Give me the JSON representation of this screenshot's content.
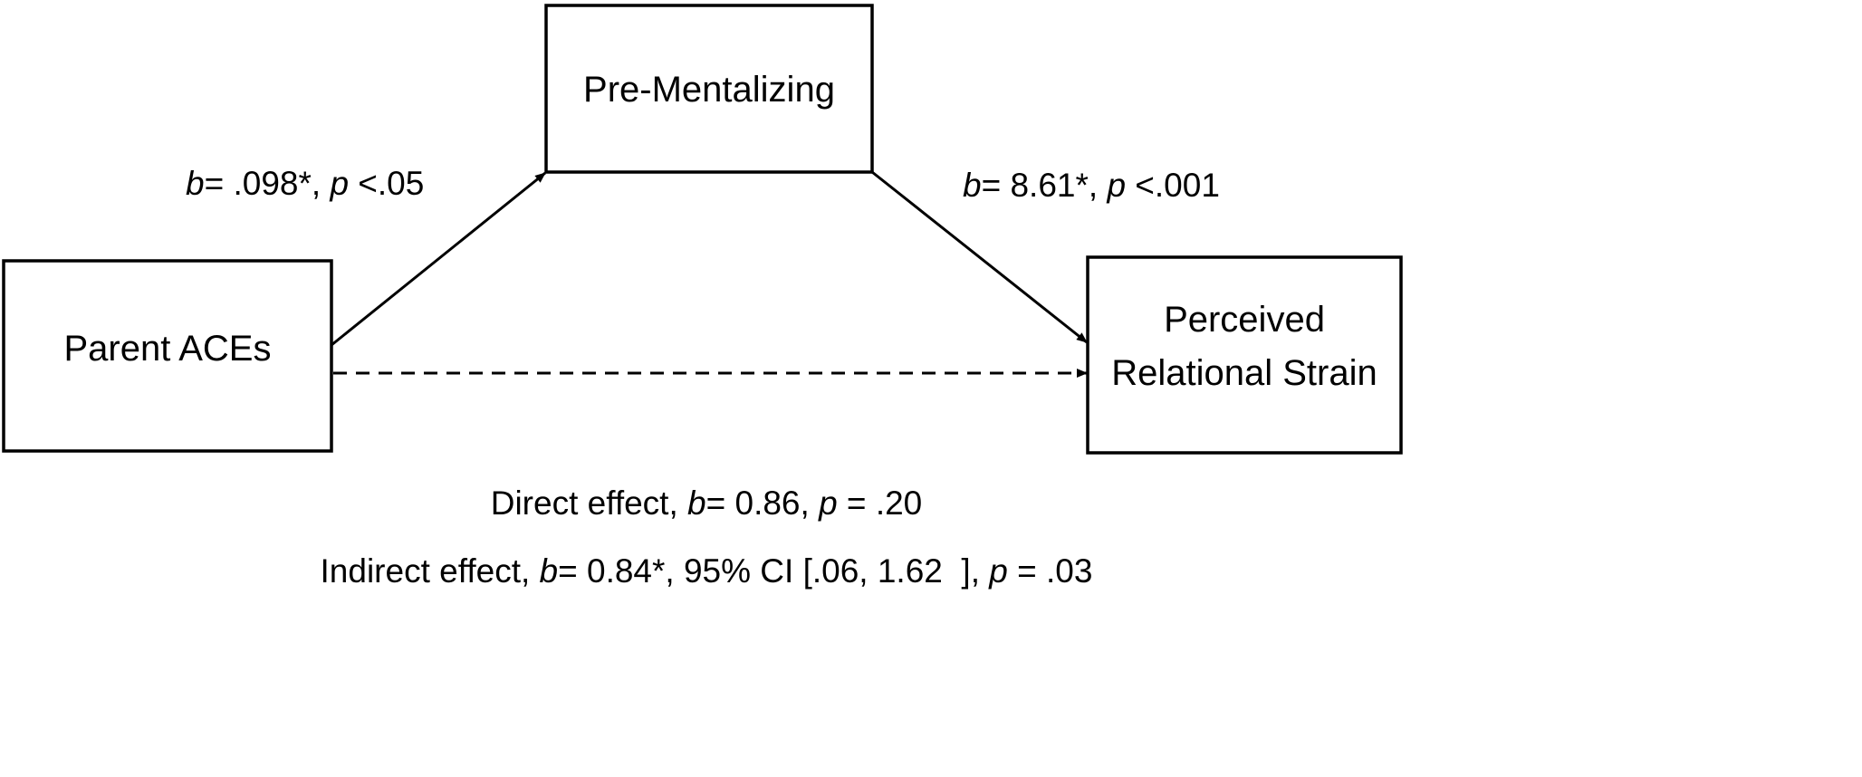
{
  "nodes": {
    "mediator": "Pre-Mentalizing",
    "predictor": "Parent ACEs",
    "outcome_line1": "Perceived",
    "outcome_line2": "Relational Strain"
  },
  "paths": {
    "a": {
      "b_label": "b",
      "text": "= .098*, ",
      "p_label": "p",
      "p_text": " <.05"
    },
    "b": {
      "b_label": "b",
      "text": "= 8.61*, ",
      "p_label": "p",
      "p_text": " <.001"
    }
  },
  "effects": {
    "direct": {
      "prefix": "Direct effect, ",
      "b_label": "b",
      "text": "= 0.86, ",
      "p_label": "p",
      "p_text": " = .20"
    },
    "indirect": {
      "prefix": "Indirect effect, ",
      "b_label": "b",
      "text": "= 0.84*, 95% CI [.06, 1.62  ], ",
      "p_label": "p",
      "p_text": " = .03"
    }
  },
  "colors": {
    "stroke": "#000000",
    "background": "#ffffff"
  }
}
